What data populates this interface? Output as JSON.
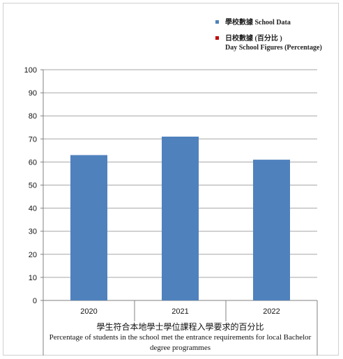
{
  "chart_data": {
    "type": "bar",
    "categories": [
      "2020",
      "2021",
      "2022"
    ],
    "series": [
      {
        "name": "學校數據 School Data",
        "values": [
          63,
          71,
          61
        ],
        "color": "#4f81bd"
      }
    ],
    "legend": [
      {
        "label": "學校數據 School Data",
        "sub": "",
        "color": "#4f81bd"
      },
      {
        "label": "日校數據 (百分比 )",
        "sub": "Day School Figures (Percentage)",
        "color": "#c00000"
      }
    ],
    "xlabel_zh": "學生符合本地學士學位課程入學要求的百分比",
    "xlabel_en": "Percentage of students in the school met the entrance requirements for local Bachelor degree programmes",
    "ylim": [
      0,
      100
    ],
    "yticks": [
      0,
      10,
      20,
      30,
      40,
      50,
      60,
      70,
      80,
      90,
      100
    ],
    "grid": true,
    "legend_position": "top-right"
  }
}
